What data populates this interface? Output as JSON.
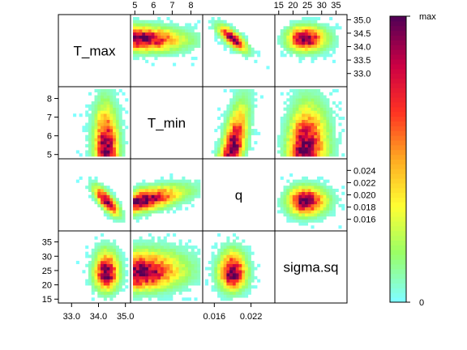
{
  "chart_data": {
    "type": "heatmap",
    "title": "",
    "variables": [
      "T_max",
      "T_min",
      "q",
      "sigma.sq"
    ],
    "ranges": {
      "T_max": [
        32.6,
        35.1
      ],
      "T_min": [
        4.9,
        8.5
      ],
      "q": [
        0.0145,
        0.0255
      ],
      "sigma.sq": [
        14.5,
        38
      ]
    },
    "ticks": {
      "T_max": [
        "33.0",
        "33.5",
        "34.0",
        "34.5",
        "35.0"
      ],
      "T_min": [
        "5",
        "6",
        "7",
        "8"
      ],
      "q": [
        "0.016",
        "0.018",
        "0.020",
        "0.022",
        "0.024"
      ],
      "sigma.sq": [
        "15",
        "20",
        "25",
        "30",
        "35"
      ]
    },
    "bottom_axis_ticks": {
      "T_max": [
        "33.0",
        "34.0",
        "35.0"
      ],
      "q": [
        "0.016",
        "0.022"
      ]
    },
    "density_modes": {
      "T_max": 34.3,
      "T_min": 5.2,
      "q": 0.019,
      "sigma.sq": 24
    },
    "colorbar": {
      "min_label": "0",
      "max_label": "max",
      "colors": [
        "#80ffff",
        "#99ff66",
        "#ffff33",
        "#ffaa22",
        "#ff3322",
        "#cc0044",
        "#550055"
      ]
    }
  }
}
